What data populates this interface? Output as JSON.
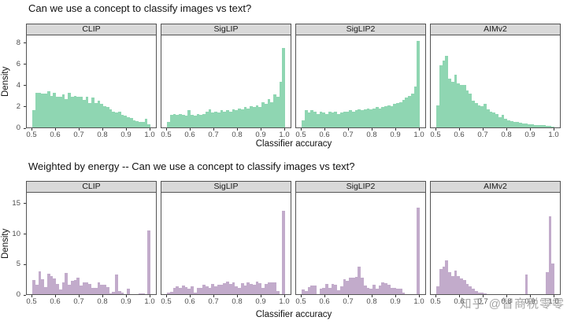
{
  "watermark": "知乎 @智商税零零",
  "chart_data": [
    {
      "type": "histogram",
      "title": "Can we use a concept to classify images vs text?",
      "xlabel": "Classifier accuracy",
      "ylabel": "Density",
      "fill_color": "#8fd6b2",
      "x_ticks": [
        "0.5",
        "0.6",
        "0.7",
        "0.8",
        "0.9",
        "1.0"
      ],
      "y_ticks": [
        0,
        2,
        4,
        6,
        8
      ],
      "xlim": [
        0.5,
        1.0
      ],
      "ylim": [
        0,
        8.7
      ],
      "bin_width": 0.0125,
      "legend": "none",
      "grid": "off",
      "facets": [
        {
          "label": "CLIP",
          "values": [
            1.6,
            3.3,
            3.3,
            3.2,
            3.2,
            3.4,
            3.0,
            3.3,
            2.9,
            2.9,
            3.1,
            2.7,
            3.3,
            2.9,
            3.0,
            2.9,
            2.9,
            2.6,
            2.9,
            2.3,
            2.8,
            2.3,
            2.5,
            2.2,
            2.0,
            1.9,
            1.7,
            1.5,
            1.4,
            1.5,
            1.2,
            1.1,
            1.0,
            0.9,
            0.7,
            0.6,
            0.5,
            0.5,
            0.8,
            0.3
          ]
        },
        {
          "label": "SigLIP",
          "values": [
            0.5,
            1.2,
            1.3,
            1.2,
            1.3,
            1.2,
            1.1,
            1.6,
            1.2,
            1.1,
            1.3,
            1.2,
            1.3,
            1.5,
            1.7,
            1.4,
            1.5,
            1.4,
            1.6,
            1.5,
            1.6,
            1.5,
            1.7,
            1.6,
            1.8,
            1.7,
            1.9,
            1.8,
            2.0,
            1.9,
            2.1,
            1.9,
            2.4,
            2.2,
            2.7,
            2.4,
            3.1,
            2.9,
            4.3,
            7.5
          ]
        },
        {
          "label": "SigLIP2",
          "values": [
            0.7,
            1.6,
            1.4,
            1.6,
            1.5,
            1.3,
            1.5,
            1.4,
            1.3,
            1.5,
            1.4,
            1.5,
            1.3,
            1.4,
            1.5,
            1.5,
            1.6,
            1.5,
            1.6,
            1.7,
            1.6,
            1.7,
            1.8,
            1.7,
            1.8,
            1.9,
            1.8,
            1.9,
            2.0,
            2.1,
            2.0,
            2.2,
            2.3,
            2.4,
            2.6,
            2.8,
            3.0,
            3.2,
            3.9,
            8.2
          ]
        },
        {
          "label": "AIMv2",
          "values": [
            2.1,
            5.9,
            6.3,
            6.8,
            4.6,
            4.3,
            5.0,
            4.2,
            4.0,
            4.0,
            3.5,
            3.2,
            2.5,
            2.3,
            2.1,
            2.0,
            2.2,
            1.7,
            1.5,
            1.4,
            1.3,
            1.0,
            1.2,
            0.8,
            0.7,
            0.6,
            0.55,
            0.5,
            0.45,
            0.4,
            0.35,
            0.3,
            0.3,
            0.25,
            0.25,
            0.2,
            0.2,
            0.15,
            0.15,
            0.1
          ]
        }
      ]
    },
    {
      "type": "histogram",
      "title": "Weighted by energy -- Can we use a concept to classify images vs text?",
      "xlabel": "Classifier accuracy",
      "ylabel": "Density",
      "fill_color": "#c2abcb",
      "x_ticks": [
        "0.5",
        "0.6",
        "0.7",
        "0.8",
        "0.9",
        "1.0"
      ],
      "y_ticks": [
        0,
        5,
        10,
        15
      ],
      "xlim": [
        0.5,
        1.0
      ],
      "ylim": [
        0,
        16.8
      ],
      "bin_width": 0.0125,
      "legend": "none",
      "grid": "off",
      "facets": [
        {
          "label": "CLIP",
          "values": [
            2.4,
            1.6,
            3.8,
            2.5,
            1.2,
            3.4,
            3.0,
            2.6,
            1.7,
            0.8,
            2.0,
            3.5,
            1.6,
            2.2,
            2.4,
            2.7,
            1.4,
            2.0,
            1.9,
            1.7,
            1.1,
            1.0,
            1.9,
            1.6,
            1.5,
            1.2,
            0.1,
            0.4,
            3.3,
            0.5,
            0.3,
            0,
            0.9,
            0,
            0,
            0,
            0.15,
            0.1,
            0,
            10.5
          ]
        },
        {
          "label": "SigLIP",
          "values": [
            0.3,
            0.4,
            1.0,
            1.3,
            1.1,
            1.4,
            1.2,
            0.9,
            1.3,
            0.3,
            1.0,
            1.1,
            1.6,
            1.3,
            1.1,
            1.7,
            1.3,
            1.5,
            1.5,
            1.8,
            2.1,
            1.7,
            2.0,
            1.3,
            1.0,
            1.8,
            1.4,
            1.9,
            1.7,
            1.5,
            2.1,
            1.8,
            1.0,
            1.7,
            1.9,
            1.9,
            1.9,
            0.5,
            0,
            13.8
          ]
        },
        {
          "label": "SigLIP2",
          "values": [
            0.8,
            0.5,
            1.2,
            1.4,
            1.4,
            0,
            0.9,
            1.0,
            1.7,
            1.0,
            1.7,
            1.5,
            0.6,
            1.3,
            2.5,
            2.2,
            2.8,
            2.7,
            2.9,
            4.6,
            2.7,
            1.4,
            1.0,
            0.9,
            1.5,
            0.9,
            1.4,
            2.0,
            1.8,
            1.5,
            1.1,
            1.1,
            0.9,
            0.9,
            0.3,
            0,
            0,
            0,
            0,
            14.3
          ]
        },
        {
          "label": "AIMv2",
          "values": [
            1.3,
            4.2,
            4.6,
            5.6,
            3.6,
            3.0,
            3.9,
            3.0,
            2.6,
            2.4,
            1.7,
            1.3,
            0.9,
            0.5,
            0.3,
            0.2,
            0.1,
            0,
            0,
            0,
            0,
            0,
            0,
            0,
            0,
            0,
            0,
            0,
            0,
            0,
            3.2,
            0,
            0,
            0,
            0,
            0,
            0,
            3.6,
            12.9,
            5.1
          ]
        }
      ]
    }
  ]
}
